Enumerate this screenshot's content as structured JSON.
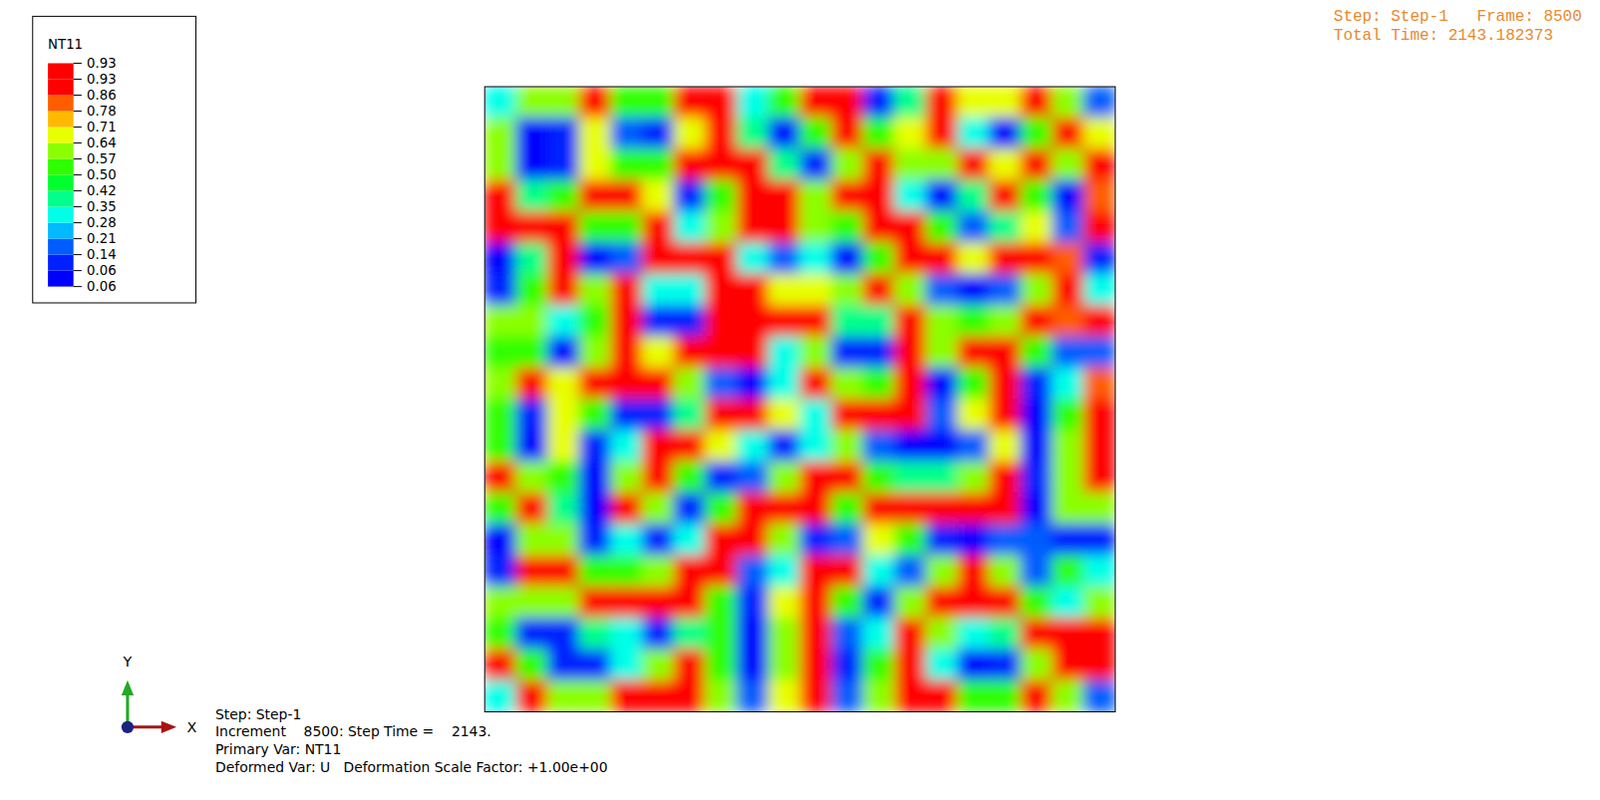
{
  "chart_data": {
    "type": "heatmap",
    "colorbar": {
      "title": "NT11",
      "ticks": [
        {
          "value": 0.058,
          "label": "0.06"
        },
        {
          "value": 0.064,
          "label": "0.06"
        },
        0.14,
        0.21,
        0.28,
        0.35,
        0.42,
        {
          "value": 0.5,
          "label": "0.50"
        },
        0.57,
        0.64,
        0.71,
        0.78,
        0.86,
        {
          "value": 0.926,
          "label": "0.93"
        },
        {
          "value": 0.932,
          "label": "0.93"
        }
      ],
      "colors": [
        "#0000ff",
        "#0020ff",
        "#005dff",
        "#00b9ff",
        "#00ffe8",
        "#00ff8b",
        "#00ff2e",
        "#2eff00",
        "#8bff00",
        "#e8ff00",
        "#ffb900",
        "#ff5d00",
        "#ff0000",
        "#ff0000"
      ]
    },
    "cells": [
      [
        0.3,
        0.6,
        0.6,
        0.93,
        0.5,
        0.5,
        0.93,
        0.93,
        0.3,
        0.5,
        0.93,
        0.93,
        0.1,
        0.4,
        0.93,
        0.7,
        0.7,
        0.93,
        0.6,
        0.2
      ],
      [
        0.6,
        0.06,
        0.1,
        0.7,
        0.2,
        0.1,
        0.7,
        0.93,
        0.4,
        0.06,
        0.5,
        0.93,
        0.5,
        0.7,
        0.93,
        0.3,
        0.06,
        0.5,
        0.93,
        0.7
      ],
      [
        0.6,
        0.06,
        0.1,
        0.7,
        0.5,
        0.5,
        0.93,
        0.93,
        0.93,
        0.4,
        0.1,
        0.6,
        0.93,
        0.6,
        0.6,
        0.93,
        0.7,
        0.93,
        0.6,
        0.93
      ],
      [
        0.93,
        0.4,
        0.5,
        0.93,
        0.93,
        0.7,
        0.1,
        0.5,
        0.93,
        0.93,
        0.6,
        0.93,
        0.93,
        0.3,
        0.06,
        0.4,
        0.93,
        0.5,
        0.06,
        0.8
      ],
      [
        0.93,
        0.93,
        0.93,
        0.5,
        0.5,
        0.93,
        0.3,
        0.6,
        0.93,
        0.93,
        0.6,
        0.5,
        0.93,
        0.93,
        0.5,
        0.2,
        0.4,
        0.7,
        0.2,
        0.93
      ],
      [
        0.06,
        0.4,
        0.93,
        0.06,
        0.2,
        0.93,
        0.93,
        0.93,
        0.3,
        0.2,
        0.3,
        0.06,
        0.5,
        0.93,
        0.93,
        0.7,
        0.93,
        0.93,
        0.8,
        0.1
      ],
      [
        0.1,
        0.5,
        0.93,
        0.6,
        0.93,
        0.3,
        0.3,
        0.93,
        0.93,
        0.7,
        0.7,
        0.6,
        0.93,
        0.6,
        0.2,
        0.06,
        0.2,
        0.6,
        0.93,
        0.3
      ],
      [
        0.6,
        0.6,
        0.3,
        0.5,
        0.93,
        0.1,
        0.1,
        0.93,
        0.93,
        0.93,
        0.93,
        0.4,
        0.4,
        0.93,
        0.6,
        0.5,
        0.6,
        0.93,
        0.8,
        0.93
      ],
      [
        0.5,
        0.5,
        0.06,
        0.6,
        0.93,
        0.7,
        0.93,
        0.93,
        0.93,
        0.3,
        0.6,
        0.1,
        0.1,
        0.93,
        0.6,
        0.93,
        0.93,
        0.5,
        0.2,
        0.2
      ],
      [
        0.6,
        0.93,
        0.7,
        0.93,
        0.93,
        0.93,
        0.6,
        0.2,
        0.06,
        0.3,
        0.93,
        0.6,
        0.5,
        0.93,
        0.06,
        0.5,
        0.93,
        0.1,
        0.3,
        0.8
      ],
      [
        0.5,
        0.1,
        0.7,
        0.5,
        0.1,
        0.1,
        0.4,
        0.93,
        0.93,
        0.7,
        0.3,
        0.93,
        0.93,
        0.93,
        0.2,
        0.7,
        0.93,
        0.06,
        0.5,
        0.93
      ],
      [
        0.5,
        0.06,
        0.7,
        0.1,
        0.3,
        0.93,
        0.93,
        0.7,
        0.3,
        0.1,
        0.3,
        0.6,
        0.2,
        0.06,
        0.06,
        0.2,
        0.7,
        0.06,
        0.6,
        0.93
      ],
      [
        0.93,
        0.6,
        0.5,
        0.06,
        0.6,
        0.93,
        0.5,
        0.1,
        0.2,
        0.6,
        0.93,
        0.93,
        0.5,
        0.4,
        0.4,
        0.6,
        0.93,
        0.1,
        0.6,
        0.9
      ],
      [
        0.5,
        0.93,
        0.4,
        0.06,
        0.93,
        0.6,
        0.1,
        0.5,
        0.93,
        0.93,
        0.93,
        0.5,
        0.93,
        0.93,
        0.93,
        0.93,
        0.93,
        0.06,
        0.6,
        0.6
      ],
      [
        0.06,
        0.6,
        0.6,
        0.1,
        0.3,
        0.1,
        0.3,
        0.93,
        0.93,
        0.6,
        0.1,
        0.2,
        0.7,
        0.5,
        0.1,
        0.06,
        0.2,
        0.2,
        0.1,
        0.1
      ],
      [
        0.1,
        0.93,
        0.93,
        0.5,
        0.5,
        0.6,
        0.93,
        0.93,
        0.2,
        0.3,
        0.93,
        0.93,
        0.3,
        0.2,
        0.6,
        0.93,
        0.6,
        0.2,
        0.5,
        0.3
      ],
      [
        0.6,
        0.6,
        0.6,
        0.93,
        0.93,
        0.93,
        0.93,
        0.5,
        0.1,
        0.7,
        0.93,
        0.5,
        0.1,
        0.6,
        0.93,
        0.93,
        0.93,
        0.5,
        0.3,
        0.6
      ],
      [
        0.5,
        0.1,
        0.1,
        0.4,
        0.3,
        0.1,
        0.4,
        0.5,
        0.06,
        0.6,
        0.93,
        0.2,
        0.3,
        0.93,
        0.6,
        0.3,
        0.4,
        0.93,
        0.93,
        0.93
      ],
      [
        0.93,
        0.5,
        0.1,
        0.1,
        0.3,
        0.6,
        0.93,
        0.5,
        0.06,
        0.6,
        0.93,
        0.1,
        0.5,
        0.93,
        0.3,
        0.06,
        0.1,
        0.6,
        0.93,
        0.93
      ],
      [
        0.3,
        0.93,
        0.6,
        0.6,
        0.93,
        0.93,
        0.93,
        0.6,
        0.2,
        0.7,
        0.93,
        0.2,
        0.6,
        0.93,
        0.93,
        0.5,
        0.5,
        0.93,
        0.6,
        0.2
      ]
    ],
    "texts": {
      "frame": "Step: Step-1   Frame: 8500",
      "total_time": "Total Time: 2143.182373",
      "info": [
        "Step: Step-1",
        "Increment    8500: Step Time =    2143.",
        "Primary Var: NT11",
        "Deformed Var: U   Deformation Scale Factor: +1.00e+00"
      ],
      "axis_x": "X",
      "axis_y": "Y"
    }
  }
}
